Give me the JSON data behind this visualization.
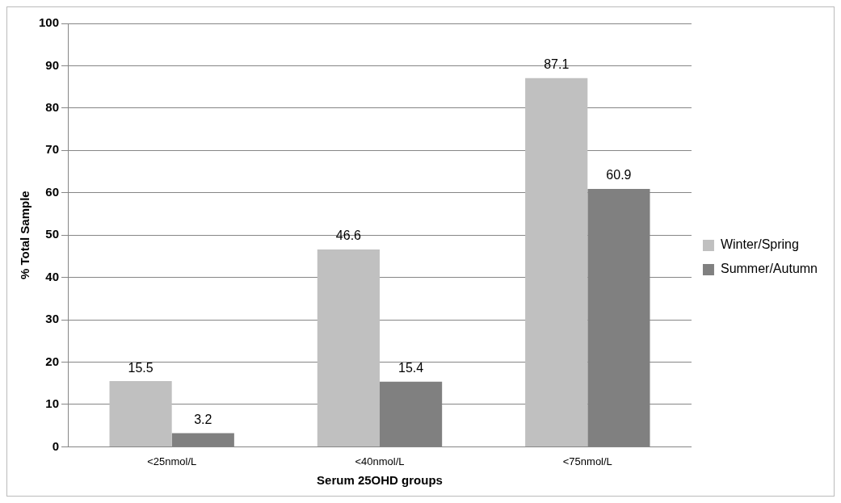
{
  "chart_data": {
    "type": "bar",
    "xlabel": "Serum 25OHD groups",
    "ylabel": "% Total Sample",
    "categories": [
      "<25nmol/L",
      "<40nmol/L",
      "<75nmol/L"
    ],
    "series": [
      {
        "name": "Winter/Spring",
        "color": "#c0c0c0",
        "values": [
          15.5,
          46.6,
          87.1
        ]
      },
      {
        "name": "Summer/Autumn",
        "color": "#808080",
        "values": [
          3.2,
          15.4,
          60.9
        ]
      }
    ],
    "ylim": [
      0,
      100
    ],
    "yticks": [
      0,
      10,
      20,
      30,
      40,
      50,
      60,
      70,
      80,
      90,
      100
    ],
    "grid": "y",
    "legend": "right",
    "data_labels": true
  }
}
